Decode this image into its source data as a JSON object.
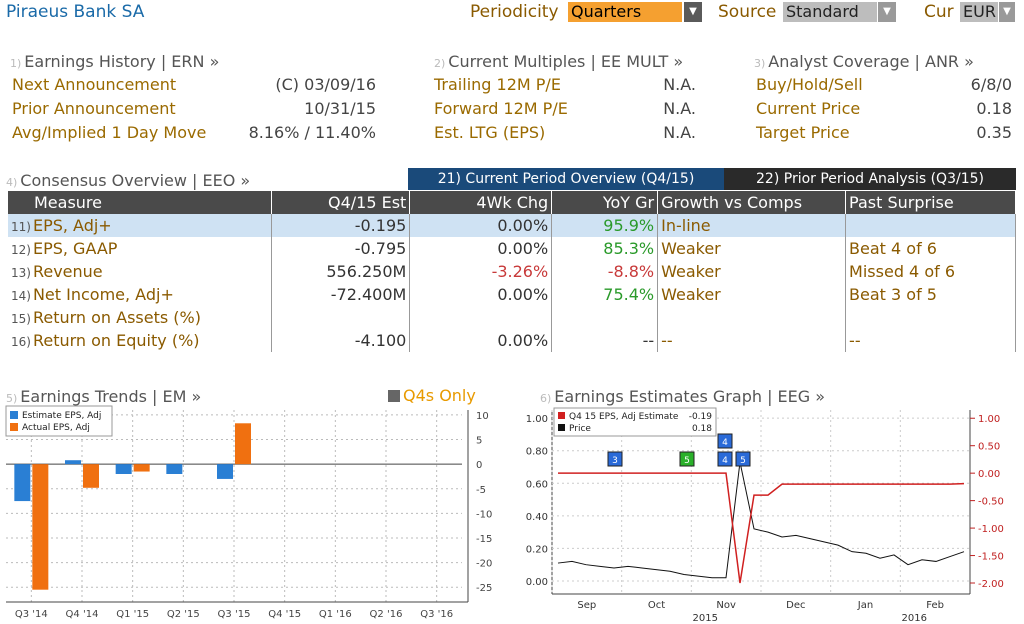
{
  "header": {
    "company": "Piraeus Bank SA",
    "periodicity_label": "Periodicity",
    "periodicity_value": "Quarters",
    "source_label": "Source",
    "source_value": "Standard",
    "cur_label": "Cur",
    "cur_value": "EUR"
  },
  "earnings_history": {
    "num": "1)",
    "title": "Earnings History | ERN »",
    "rows": [
      {
        "label": "Next Announcement",
        "value": "(C)  03/09/16"
      },
      {
        "label": "Prior Announcement",
        "value": "10/31/15"
      },
      {
        "label": "Avg/Implied 1 Day Move",
        "value": "8.16% / 11.40%"
      }
    ]
  },
  "current_multiples": {
    "num": "2)",
    "title": "Current Multiples | EE MULT »",
    "rows": [
      {
        "label": "Trailing 12M P/E",
        "value": "N.A."
      },
      {
        "label": "Forward 12M P/E",
        "value": "N.A."
      },
      {
        "label": "Est. LTG (EPS)",
        "value": "N.A."
      }
    ]
  },
  "analyst_coverage": {
    "num": "3)",
    "title": "Analyst Coverage | ANR »",
    "rows": [
      {
        "label": "Buy/Hold/Sell",
        "value": "6/8/0"
      },
      {
        "label": "Current Price",
        "value": "0.18"
      },
      {
        "label": "Target Price",
        "value": "0.35"
      }
    ]
  },
  "consensus": {
    "num": "4)",
    "title": "Consensus Overview | EEO »",
    "tab_current": "21) Current Period Overview (Q4/15)",
    "tab_prior": "22) Prior Period Analysis (Q3/15)",
    "headers": [
      "Measure",
      "Q4/15 Est",
      "4Wk Chg",
      "YoY Gr",
      "Growth vs Comps",
      "Past Surprise"
    ],
    "rows": [
      {
        "n": "11)",
        "measure": "EPS, Adj+",
        "est": "-0.195",
        "chg": "0.00%",
        "yoy": "95.9%",
        "growth": "In-line",
        "surprise": ""
      },
      {
        "n": "12)",
        "measure": "EPS, GAAP",
        "est": "-0.795",
        "chg": "0.00%",
        "yoy": "85.3%",
        "growth": "Weaker",
        "surprise": "Beat 4 of 6"
      },
      {
        "n": "13)",
        "measure": "Revenue",
        "est": "556.250M",
        "chg": "-3.26%",
        "yoy": "-8.8%",
        "growth": "Weaker",
        "surprise": "Missed 4 of 6"
      },
      {
        "n": "14)",
        "measure": "Net Income, Adj+",
        "est": "-72.400M",
        "chg": "0.00%",
        "yoy": "75.4%",
        "growth": "Weaker",
        "surprise": "Beat 3 of 5"
      },
      {
        "n": "15)",
        "measure": "Return on Assets (%)",
        "est": "",
        "chg": "",
        "yoy": "",
        "growth": "",
        "surprise": ""
      },
      {
        "n": "16)",
        "measure": "Return on Equity (%)",
        "est": "-4.100",
        "chg": "0.00%",
        "yoy": "--",
        "growth": "--",
        "surprise": "--"
      }
    ]
  },
  "trends": {
    "num": "5)",
    "title": "Earnings Trends | EM »",
    "q4_only": "Q4s Only",
    "chart_data": {
      "type": "bar",
      "categories": [
        "Q3 '14",
        "Q4 '14",
        "Q1 '15",
        "Q2 '15",
        "Q3 '15",
        "Q4 '15",
        "Q1 '16",
        "Q2 '16",
        "Q3 '16"
      ],
      "series": [
        {
          "name": "Estimate EPS, Adj",
          "color": "#2a7fd4",
          "values": [
            -7.5,
            0.8,
            -2,
            -2,
            -3,
            null,
            null,
            null,
            null
          ]
        },
        {
          "name": "Actual EPS, Adj",
          "color": "#f07010",
          "values": [
            -25.5,
            -4.8,
            -1.5,
            null,
            8.3,
            null,
            null,
            null,
            null
          ]
        }
      ],
      "ylim": [
        -28,
        11
      ],
      "yticks": [
        "10",
        "5",
        "0",
        "-5",
        "-10",
        "-15",
        "-20",
        "-25"
      ],
      "ytick_values": [
        10,
        5,
        0,
        -5,
        -10,
        -15,
        -20,
        -25
      ]
    }
  },
  "estimates_graph": {
    "num": "6)",
    "title": "Earnings Estimates Graph | EEG »",
    "chart_data": {
      "type": "line",
      "legend": [
        {
          "name": "Q4 15 EPS, Adj Estimate",
          "value": "-0.19",
          "color": "#d02020"
        },
        {
          "name": "Price",
          "value": "0.18",
          "color": "#111111"
        }
      ],
      "left_ticks": [
        "1.00",
        "0.80",
        "0.60",
        "0.40",
        "0.20",
        "0.00"
      ],
      "left_tick_values": [
        1.0,
        0.8,
        0.6,
        0.4,
        0.2,
        0.0
      ],
      "right_ticks": [
        "1.00",
        "0.50",
        "0.00",
        "-0.50",
        "-1.00",
        "-1.50",
        "-2.00"
      ],
      "right_tick_values": [
        1.0,
        0.5,
        0.0,
        -0.5,
        -1.0,
        -1.5,
        -2.0
      ],
      "months": [
        "Sep",
        "Oct",
        "Nov",
        "Dec",
        "Jan",
        "Feb"
      ],
      "years": [
        "2015",
        "2016"
      ],
      "price": [
        0.11,
        0.12,
        0.1,
        0.09,
        0.08,
        0.09,
        0.08,
        0.07,
        0.06,
        0.04,
        0.03,
        0.02,
        0.02,
        0.73,
        0.32,
        0.3,
        0.27,
        0.28,
        0.26,
        0.24,
        0.22,
        0.18,
        0.17,
        0.14,
        0.16,
        0.1,
        0.13,
        0.12,
        0.15,
        0.18
      ],
      "estimate": [
        0.0,
        0.0,
        0.0,
        0.0,
        0.0,
        0.0,
        0.0,
        0.0,
        0.0,
        0.0,
        0.0,
        0.0,
        0.0,
        -2.0,
        -0.4,
        -0.4,
        -0.2,
        -0.2,
        -0.2,
        -0.2,
        -0.2,
        -0.2,
        -0.2,
        -0.2,
        -0.2,
        -0.2,
        -0.2,
        -0.2,
        -0.2,
        -0.19
      ],
      "markers": [
        {
          "label": "3",
          "color": "#2a6ad8"
        },
        {
          "label": "5",
          "color": "#2ab02a"
        },
        {
          "label": "4",
          "color": "#2a6ad8"
        },
        {
          "label": "4",
          "color": "#2a6ad8"
        },
        {
          "label": "5",
          "color": "#2a6ad8"
        }
      ]
    }
  }
}
